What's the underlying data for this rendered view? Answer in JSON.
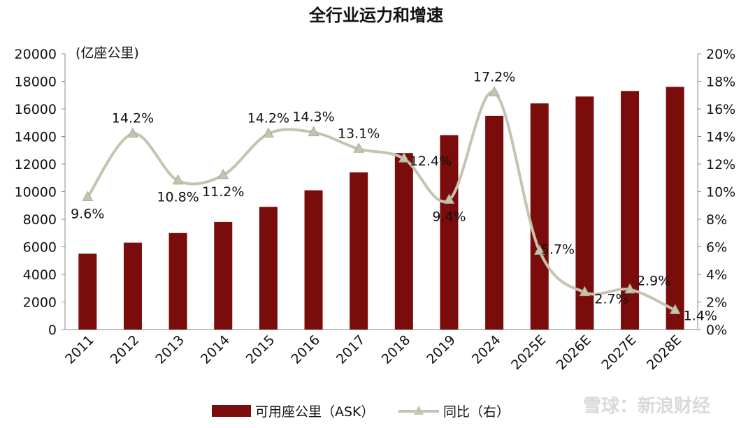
{
  "watermark": "雪球：新浪财经",
  "chart_data": {
    "type": "bar",
    "title": "全行业运力和增速",
    "unit_left": "(亿座公里)",
    "categories": [
      "2011",
      "2012",
      "2013",
      "2014",
      "2015",
      "2016",
      "2017",
      "2018",
      "2019",
      "2024",
      "2025E",
      "2026E",
      "2027E",
      "2028E"
    ],
    "series": [
      {
        "name": "可用座公里（ASK）",
        "axis": "left",
        "type": "bar",
        "color": "#7b0c0c",
        "values": [
          5500,
          6300,
          7000,
          7800,
          8900,
          10100,
          11400,
          12800,
          14100,
          15500,
          16400,
          16900,
          17300,
          17600
        ]
      },
      {
        "name": "同比（右）",
        "axis": "right",
        "type": "line",
        "color": "#c4c4b0",
        "values": [
          9.6,
          14.2,
          10.8,
          11.2,
          14.2,
          14.3,
          13.1,
          12.4,
          9.4,
          17.2,
          5.7,
          2.7,
          2.9,
          1.4
        ],
        "labels": [
          "9.6%",
          "14.2%",
          "10.8%",
          "11.2%",
          "14.2%",
          "14.3%",
          "13.1%",
          "12.4%",
          "9.4%",
          "17.2%",
          "5.7%",
          "2.7%",
          "2.9%",
          "1.4%"
        ]
      }
    ],
    "ylim_left": [
      0,
      20000
    ],
    "yticks_left": [
      "0",
      "2000",
      "4000",
      "6000",
      "8000",
      "10000",
      "12000",
      "14000",
      "16000",
      "18000",
      "20000"
    ],
    "ylim_right": [
      0,
      20
    ],
    "yticks_right": [
      "0%",
      "2%",
      "4%",
      "6%",
      "8%",
      "10%",
      "12%",
      "14%",
      "16%",
      "18%",
      "20%"
    ],
    "grid": false,
    "legend_position": "bottom"
  }
}
